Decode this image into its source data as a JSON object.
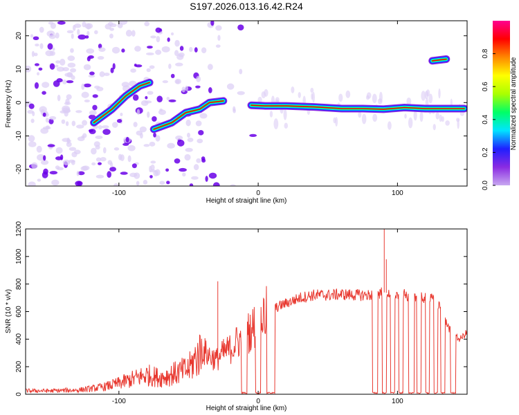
{
  "title": "S197.2026.013.16.42.R24",
  "colors": {
    "series": "#e8382f",
    "blob_light": "#dccdf5",
    "blob_dark": "#6a00e8",
    "frame": "#000000"
  },
  "chart_data": [
    {
      "id": "spectrogram",
      "type": "heatmap",
      "xlabel": "Height of straight line (km)",
      "ylabel": "Frequency (Hz)",
      "xlim": [
        -167,
        150
      ],
      "ylim": [
        -25,
        24.5
      ],
      "xticks": [
        -100,
        0,
        100
      ],
      "xtick_labels": [
        "-100",
        "0",
        "100"
      ],
      "yticks": [
        20,
        10,
        0,
        -10,
        -20
      ],
      "ytick_labels": [
        "20",
        "10",
        "0",
        "-10",
        "-20"
      ],
      "colorbar": {
        "label": "Normalized spectral amplitude",
        "ticks": [
          0.0,
          0.2,
          0.4,
          0.6,
          0.8
        ],
        "tick_labels": [
          "0.0",
          "0.2",
          "0.4",
          "0.6",
          "0.8"
        ],
        "stops": [
          "#c8a8f0",
          "#8a2be2",
          "#1f1fff",
          "#00e5ff",
          "#00ff66",
          "#aaff00",
          "#ffff00",
          "#ff8800",
          "#ff0000",
          "#ff0090"
        ]
      },
      "ridges": [
        {
          "name": "main ridge",
          "points": [
            [
              -5,
              -0.8
            ],
            [
              5,
              -1.0
            ],
            [
              20,
              -1.0
            ],
            [
              40,
              -1.3
            ],
            [
              60,
              -1.8
            ],
            [
              75,
              -1.8
            ],
            [
              90,
              -2.0
            ],
            [
              105,
              -1.5
            ],
            [
              120,
              -1.8
            ],
            [
              135,
              -1.8
            ],
            [
              148,
              -1.8
            ]
          ]
        },
        {
          "name": "rising branch",
          "points": [
            [
              -118,
              -6
            ],
            [
              -105,
              -2
            ],
            [
              -95,
              2
            ],
            [
              -85,
              5
            ],
            [
              -78,
              6
            ]
          ]
        },
        {
          "name": "lower branch",
          "points": [
            [
              -75,
              -8
            ],
            [
              -62,
              -6
            ],
            [
              -52,
              -3
            ],
            [
              -42,
              -2
            ],
            [
              -35,
              0
            ],
            [
              -25,
              0.5
            ]
          ]
        },
        {
          "name": "upper burst",
          "points": [
            [
              125,
              12.5
            ],
            [
              135,
              13
            ]
          ]
        }
      ]
    },
    {
      "id": "snr",
      "type": "line",
      "xlabel": "Height of straight line (km)",
      "ylabel": "SNR (10 * v/v)",
      "xlim": [
        -167,
        150
      ],
      "ylim": [
        0,
        1200
      ],
      "xticks": [
        -100,
        0,
        100
      ],
      "xtick_labels": [
        "-100",
        "0",
        "100"
      ],
      "yticks": [
        0,
        200,
        400,
        600,
        800,
        1000,
        1200
      ],
      "ytick_labels": [
        "0",
        "200",
        "400",
        "600",
        "800",
        "1000",
        "1200"
      ],
      "series": [
        {
          "name": "SNR",
          "color": "#e8382f",
          "x": [
            -167,
            -150,
            -130,
            -120,
            -110,
            -100,
            -90,
            -80,
            -70,
            -60,
            -50,
            -45,
            -40,
            -35,
            -30,
            -25,
            -20,
            -15,
            -10,
            -5,
            0,
            5,
            10,
            15,
            20,
            30,
            40,
            50,
            60,
            70,
            80,
            84,
            90,
            95,
            100,
            105,
            110,
            115,
            120,
            125,
            130,
            135,
            140,
            145,
            150
          ],
          "values": [
            25,
            25,
            30,
            40,
            55,
            80,
            110,
            140,
            120,
            150,
            180,
            260,
            320,
            280,
            250,
            300,
            330,
            380,
            420,
            470,
            520,
            580,
            610,
            640,
            660,
            700,
            720,
            720,
            725,
            720,
            720,
            730,
            740,
            730,
            720,
            720,
            700,
            705,
            700,
            690,
            640,
            520,
            420,
            400,
            450
          ]
        }
      ],
      "dropouts": [
        [
          -12,
          -8
        ],
        [
          -2,
          2
        ],
        [
          6,
          12
        ],
        [
          82,
          86
        ],
        [
          89,
          92
        ],
        [
          95,
          98
        ],
        [
          101,
          104
        ],
        [
          108,
          112
        ],
        [
          114,
          117
        ],
        [
          120,
          123
        ],
        [
          126,
          129
        ],
        [
          131,
          134
        ],
        [
          138,
          142
        ]
      ]
    }
  ]
}
